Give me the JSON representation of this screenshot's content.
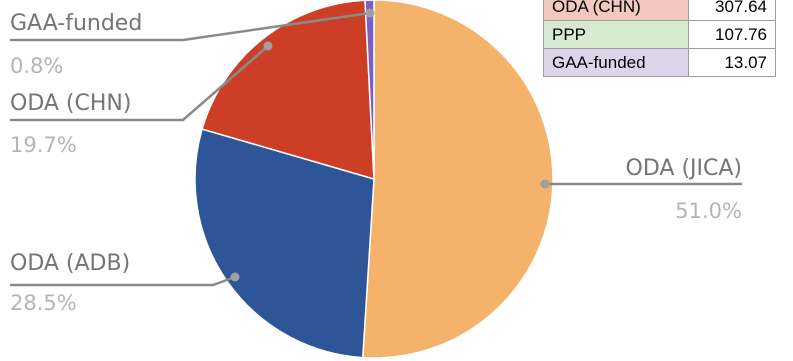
{
  "chart_data": {
    "type": "pie",
    "categories": [
      "ODA (JICA)",
      "ODA (ADB)",
      "ODA (CHN)",
      "GAA-funded"
    ],
    "values": [
      51.0,
      28.5,
      19.7,
      0.8
    ],
    "percent_labels": [
      "51.0%",
      "28.5%",
      "19.7%",
      "0.8%"
    ],
    "colors": [
      "#f4b26a",
      "#2e5597",
      "#cc3f26",
      "#7b5fc4"
    ]
  },
  "table": {
    "rows": [
      {
        "name": "ODA (CHN)",
        "value": "307.64",
        "color": "#f2c8bf"
      },
      {
        "name": "PPP",
        "value": "107.76",
        "color": "#d6ead2"
      },
      {
        "name": "GAA-funded",
        "value": "13.07",
        "color": "#dcd5ec"
      }
    ]
  }
}
